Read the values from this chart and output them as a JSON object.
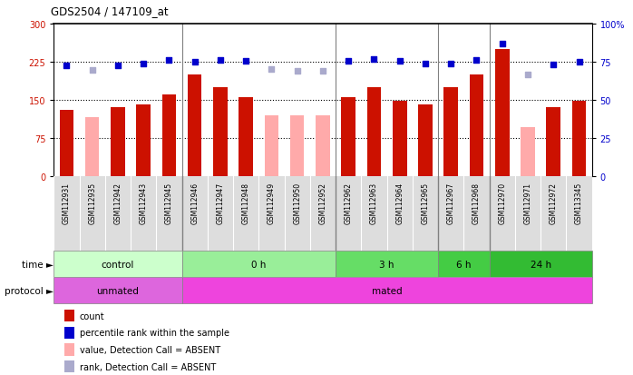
{
  "title": "GDS2504 / 147109_at",
  "samples": [
    "GSM112931",
    "GSM112935",
    "GSM112942",
    "GSM112943",
    "GSM112945",
    "GSM112946",
    "GSM112947",
    "GSM112948",
    "GSM112949",
    "GSM112950",
    "GSM112952",
    "GSM112962",
    "GSM112963",
    "GSM112964",
    "GSM112965",
    "GSM112967",
    "GSM112968",
    "GSM112970",
    "GSM112971",
    "GSM112972",
    "GSM113345"
  ],
  "count_values": [
    130,
    0,
    135,
    140,
    160,
    200,
    175,
    155,
    0,
    0,
    0,
    155,
    175,
    147,
    140,
    175,
    200,
    250,
    0,
    135,
    147
  ],
  "count_absent": [
    false,
    true,
    false,
    false,
    false,
    false,
    false,
    false,
    true,
    true,
    true,
    false,
    false,
    false,
    false,
    false,
    false,
    false,
    true,
    false,
    false
  ],
  "absent_count_values": [
    0,
    115,
    0,
    0,
    0,
    0,
    0,
    0,
    120,
    120,
    120,
    0,
    0,
    0,
    0,
    0,
    0,
    0,
    95,
    0,
    0
  ],
  "rank_values": [
    218,
    0,
    218,
    222,
    228,
    225,
    228,
    226,
    0,
    0,
    0,
    226,
    230,
    226,
    222,
    222,
    228,
    260,
    0,
    220,
    225
  ],
  "rank_absent": [
    false,
    true,
    false,
    false,
    false,
    false,
    false,
    false,
    true,
    true,
    true,
    false,
    false,
    false,
    false,
    false,
    false,
    false,
    true,
    false,
    false
  ],
  "absent_rank_values": [
    0,
    208,
    0,
    0,
    0,
    0,
    0,
    0,
    210,
    207,
    207,
    0,
    0,
    0,
    0,
    0,
    0,
    0,
    200,
    0,
    0
  ],
  "ylim_left": [
    0,
    300
  ],
  "ylim_right": [
    0,
    100
  ],
  "yticks_left": [
    0,
    75,
    150,
    225,
    300
  ],
  "ytick_labels_left": [
    "0",
    "75",
    "150",
    "225",
    "300"
  ],
  "yticks_right": [
    0,
    25,
    50,
    75,
    100
  ],
  "ytick_labels_right": [
    "0",
    "25",
    "50",
    "75",
    "100%"
  ],
  "hlines": [
    75,
    150,
    225
  ],
  "color_count": "#cc1100",
  "color_rank": "#0000cc",
  "color_absent_count": "#ffaaaa",
  "color_absent_rank": "#aaaacc",
  "groups": [
    {
      "label": "control",
      "start": 0,
      "end": 5,
      "color": "#ccffcc"
    },
    {
      "label": "0 h",
      "start": 5,
      "end": 11,
      "color": "#99ee99"
    },
    {
      "label": "3 h",
      "start": 11,
      "end": 15,
      "color": "#66dd66"
    },
    {
      "label": "6 h",
      "start": 15,
      "end": 17,
      "color": "#44cc44"
    },
    {
      "label": "24 h",
      "start": 17,
      "end": 21,
      "color": "#33bb33"
    }
  ],
  "protocol_groups": [
    {
      "label": "unmated",
      "start": 0,
      "end": 5,
      "color": "#dd66dd"
    },
    {
      "label": "mated",
      "start": 5,
      "end": 21,
      "color": "#ee44dd"
    }
  ],
  "bar_width": 0.55,
  "legend_items": [
    {
      "label": "count",
      "color": "#cc1100"
    },
    {
      "label": "percentile rank within the sample",
      "color": "#0000cc"
    },
    {
      "label": "value, Detection Call = ABSENT",
      "color": "#ffaaaa"
    },
    {
      "label": "rank, Detection Call = ABSENT",
      "color": "#aaaacc"
    }
  ]
}
